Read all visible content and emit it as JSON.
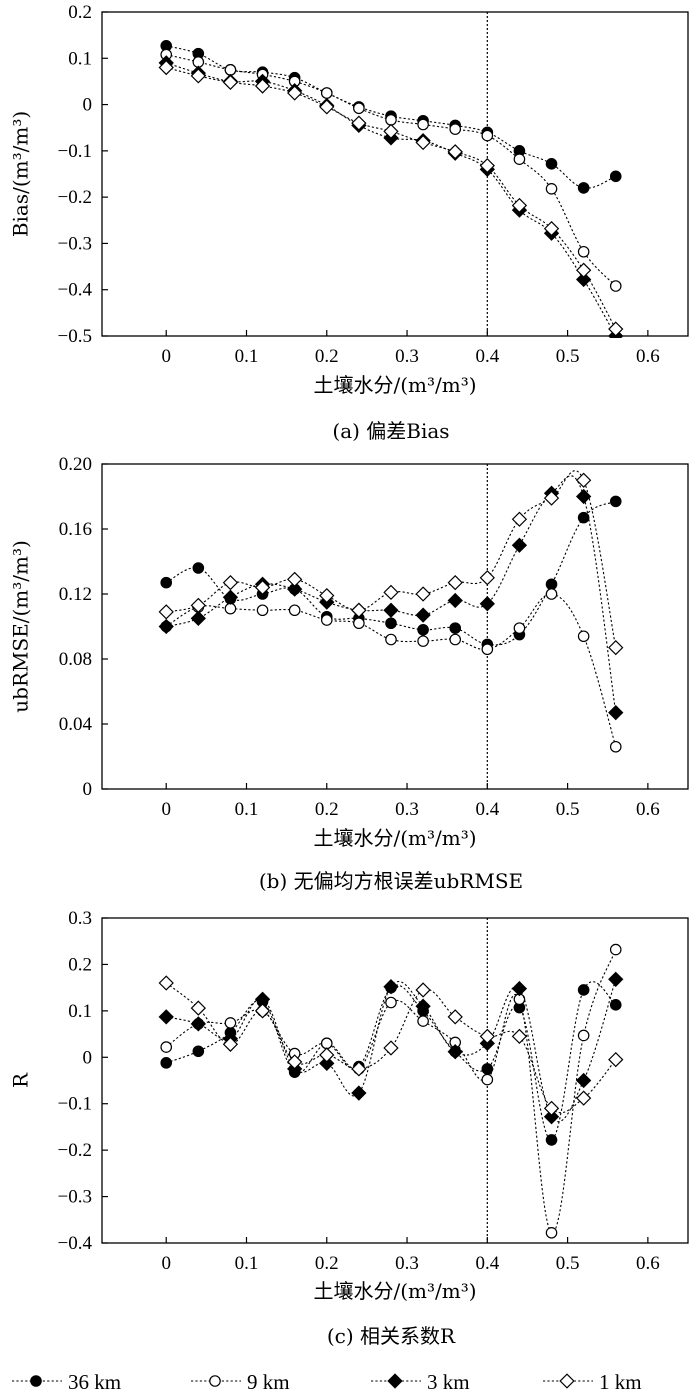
{
  "x_common": [
    0,
    0.04,
    0.08,
    0.12,
    0.16,
    0.2,
    0.24,
    0.28,
    0.32,
    0.36,
    0.4,
    0.44,
    0.48,
    0.52,
    0.56
  ],
  "chart_data": [
    {
      "type": "line",
      "title": "(a) 偏差Bias",
      "xlabel": "土壤水分/(m³/m³)",
      "ylabel": "Bias/(m³/m³)",
      "xlim": [
        -0.08,
        0.65
      ],
      "ylim": [
        -0.5,
        0.2
      ],
      "xticks": [
        "0",
        "0.1",
        "0.2",
        "0.3",
        "0.4",
        "0.5",
        "0.6"
      ],
      "xtick_values": [
        0,
        0.1,
        0.2,
        0.3,
        0.4,
        0.5,
        0.6
      ],
      "yticks": [
        "0.2",
        "0.1",
        "0",
        "−0.1",
        "−0.2",
        "−0.3",
        "−0.4",
        "−0.5"
      ],
      "ytick_values": [
        0.2,
        0.1,
        0,
        -0.1,
        -0.2,
        -0.3,
        -0.4,
        -0.5
      ],
      "vline": 0.4,
      "grid": false,
      "series": [
        {
          "name": "36 km",
          "values": [
            0.127,
            0.11,
            0.075,
            0.07,
            0.058,
            0.025,
            -0.005,
            -0.025,
            -0.035,
            -0.045,
            -0.06,
            -0.1,
            -0.128,
            -0.18,
            -0.155
          ]
        },
        {
          "name": "9 km",
          "values": [
            0.108,
            0.092,
            0.075,
            0.065,
            0.05,
            0.025,
            -0.008,
            -0.033,
            -0.043,
            -0.053,
            -0.067,
            -0.118,
            -0.182,
            -0.318,
            -0.392
          ]
        },
        {
          "name": "3 km",
          "values": [
            0.09,
            0.068,
            0.05,
            0.05,
            0.03,
            -0.002,
            -0.045,
            -0.072,
            -0.078,
            -0.105,
            -0.14,
            -0.228,
            -0.278,
            -0.378,
            -0.5
          ]
        },
        {
          "name": "1 km",
          "values": [
            0.08,
            0.062,
            0.048,
            0.04,
            0.025,
            -0.005,
            -0.04,
            -0.058,
            -0.082,
            -0.102,
            -0.132,
            -0.218,
            -0.268,
            -0.358,
            -0.485
          ]
        }
      ]
    },
    {
      "type": "line",
      "title": "(b) 无偏均方根误差ubRMSE",
      "xlabel": "土壤水分/(m³/m³)",
      "ylabel": "ubRMSE/(m³/m³)",
      "xlim": [
        -0.08,
        0.65
      ],
      "ylim": [
        0,
        0.2
      ],
      "xticks": [
        "0",
        "0.1",
        "0.2",
        "0.3",
        "0.4",
        "0.5",
        "0.6"
      ],
      "xtick_values": [
        0,
        0.1,
        0.2,
        0.3,
        0.4,
        0.5,
        0.6
      ],
      "yticks": [
        "0.20",
        "0.16",
        "0.12",
        "0.08",
        "0.04",
        "0"
      ],
      "ytick_values": [
        0.2,
        0.16,
        0.12,
        0.08,
        0.04,
        0
      ],
      "vline": 0.4,
      "grid": false,
      "series": [
        {
          "name": "36 km",
          "values": [
            0.127,
            0.136,
            0.117,
            0.12,
            0.123,
            0.106,
            0.105,
            0.102,
            0.098,
            0.099,
            0.089,
            0.095,
            0.126,
            0.167,
            0.177
          ]
        },
        {
          "name": "9 km",
          "values": [
            0.1,
            0.112,
            0.111,
            0.11,
            0.11,
            0.104,
            0.102,
            0.092,
            0.091,
            0.092,
            0.086,
            0.099,
            0.12,
            0.094,
            0.026
          ]
        },
        {
          "name": "3 km",
          "values": [
            0.1,
            0.105,
            0.118,
            0.126,
            0.123,
            0.115,
            0.11,
            0.11,
            0.107,
            0.116,
            0.114,
            0.15,
            0.182,
            0.18,
            0.047
          ]
        },
        {
          "name": "1 km",
          "values": [
            0.109,
            0.113,
            0.127,
            0.124,
            0.129,
            0.119,
            0.11,
            0.121,
            0.12,
            0.127,
            0.13,
            0.166,
            0.179,
            0.19,
            0.087
          ]
        }
      ]
    },
    {
      "type": "line",
      "title": "(c) 相关系数R",
      "xlabel": "土壤水分/(m³/m³)",
      "ylabel": "R",
      "xlim": [
        -0.08,
        0.65
      ],
      "ylim": [
        -0.4,
        0.3
      ],
      "xticks": [
        "0",
        "0.1",
        "0.2",
        "0.3",
        "0.4",
        "0.5",
        "0.6"
      ],
      "xtick_values": [
        0,
        0.1,
        0.2,
        0.3,
        0.4,
        0.5,
        0.6
      ],
      "yticks": [
        "0.3",
        "0.2",
        "0.1",
        "0",
        "−0.1",
        "−0.2",
        "−0.3",
        "−0.4"
      ],
      "ytick_values": [
        0.3,
        0.2,
        0.1,
        0,
        -0.1,
        -0.2,
        -0.3,
        -0.4
      ],
      "vline": 0.4,
      "grid": false,
      "series": [
        {
          "name": "36 km",
          "values": [
            -0.012,
            0.013,
            0.053,
            0.12,
            -0.032,
            0.03,
            -0.02,
            0.15,
            0.1,
            0.012,
            -0.025,
            0.107,
            -0.178,
            0.145,
            0.113
          ]
        },
        {
          "name": "9 km",
          "values": [
            0.022,
            0.072,
            0.074,
            0.1,
            0.008,
            0.03,
            -0.025,
            0.118,
            0.078,
            0.032,
            -0.048,
            0.125,
            -0.378,
            0.047,
            0.232
          ]
        },
        {
          "name": "3 km",
          "values": [
            0.087,
            0.072,
            0.04,
            0.125,
            -0.025,
            -0.013,
            -0.077,
            0.152,
            0.11,
            0.012,
            0.03,
            0.148,
            -0.128,
            -0.05,
            0.168
          ]
        },
        {
          "name": "1 km",
          "values": [
            0.16,
            0.106,
            0.028,
            0.1,
            -0.01,
            0.005,
            -0.025,
            0.02,
            0.145,
            0.087,
            0.045,
            0.045,
            -0.11,
            -0.088,
            -0.005
          ]
        }
      ]
    }
  ],
  "legend": [
    {
      "name": "36 km",
      "marker": "circle",
      "fill": "#000000"
    },
    {
      "name": "9 km",
      "marker": "circle",
      "fill": "#ffffff"
    },
    {
      "name": "3 km",
      "marker": "diamond",
      "fill": "#000000"
    },
    {
      "name": "1 km",
      "marker": "diamond",
      "fill": "#ffffff"
    }
  ]
}
